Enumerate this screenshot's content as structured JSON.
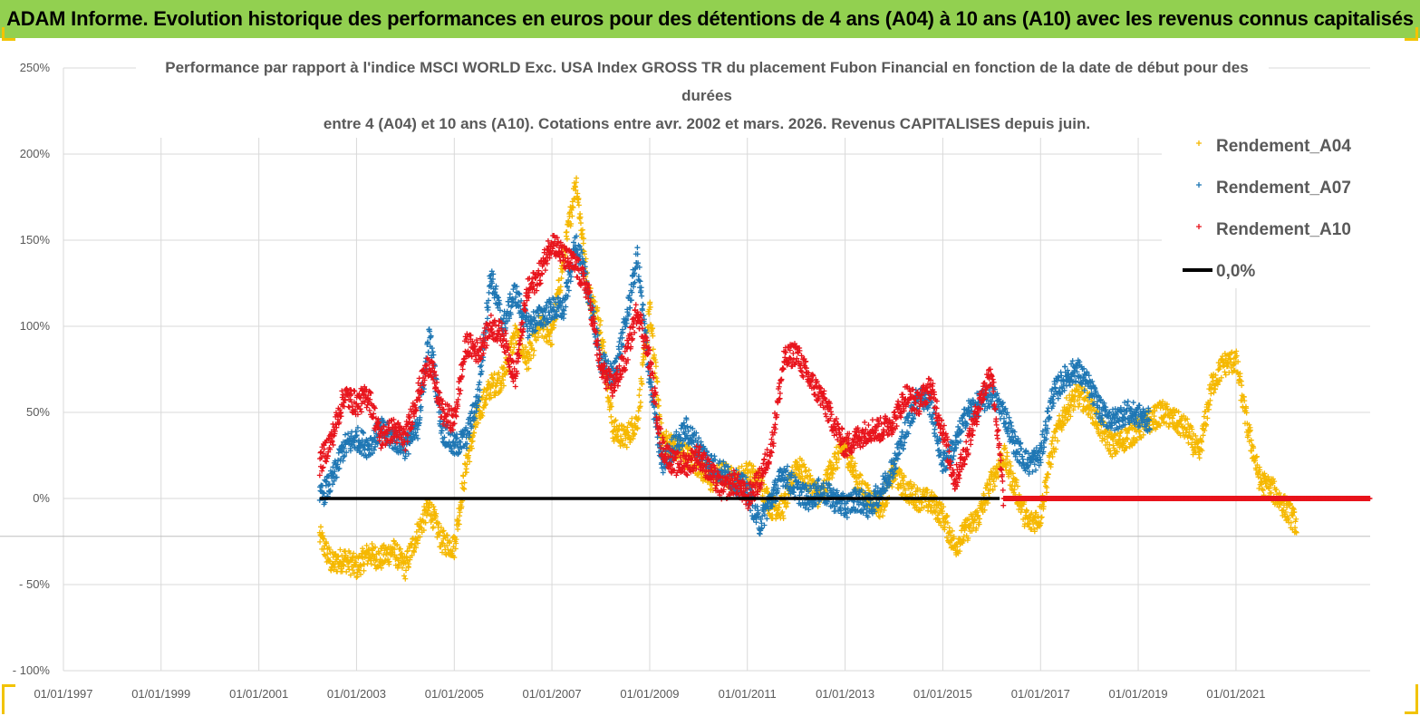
{
  "banner": {
    "title": "ADAM Informe. Evolution historique des performances en euros pour des détentions de 4 ans (A04) à 10 ans (A10) avec les revenus connus capitalisés"
  },
  "colors": {
    "banner_bg": "#92d050",
    "A04": "#f5b800",
    "A07": "#1f77b4",
    "A10": "#e8141c",
    "zero_line": "#000000",
    "grid": "#d9d9d9",
    "text": "#595959"
  },
  "chart_data": {
    "type": "scatter",
    "title_lines": [
      "Performance par rapport à l'indice MSCI WORLD Exc. USA Index GROSS TR  du placement Fubon Financial  en fonction de la date de début pour des",
      "durées",
      "entre 4 (A04) et 10 ans (A10). Cotations entre avr. 2002 et mars. 2026. Revenus CAPITALISES depuis juin."
    ],
    "xlabel": "",
    "ylabel": "",
    "x_range": [
      "1997-01-01",
      "2023-10-01"
    ],
    "x_ticks": [
      "01/01/1997",
      "01/01/1999",
      "01/01/2001",
      "01/01/2003",
      "01/01/2005",
      "01/01/2007",
      "01/01/2009",
      "01/01/2011",
      "01/01/2013",
      "01/01/2015",
      "01/01/2017",
      "01/01/2019",
      "01/01/2021"
    ],
    "ylim": [
      -100,
      250
    ],
    "y_ticks": [
      -100,
      -50,
      0,
      50,
      100,
      150,
      200,
      250
    ],
    "y_tick_labels": [
      "- 100%",
      "- 50%",
      "0%",
      "50%",
      "100%",
      "150%",
      "200%",
      "250%"
    ],
    "grid": true,
    "legend_position": "top-right",
    "series": [
      {
        "name": "Rendement_A04",
        "marker": "+",
        "points": [
          [
            "2002-04-01",
            -22
          ],
          [
            "2002-07-01",
            -38
          ],
          [
            "2002-10-01",
            -35
          ],
          [
            "2003-01-01",
            -40
          ],
          [
            "2003-04-01",
            -32
          ],
          [
            "2003-07-01",
            -35
          ],
          [
            "2003-10-01",
            -30
          ],
          [
            "2004-01-01",
            -40
          ],
          [
            "2004-04-01",
            -20
          ],
          [
            "2004-07-01",
            -5
          ],
          [
            "2004-10-01",
            -25
          ],
          [
            "2005-01-01",
            -28
          ],
          [
            "2005-04-01",
            20
          ],
          [
            "2005-07-01",
            50
          ],
          [
            "2005-10-01",
            65
          ],
          [
            "2006-01-01",
            70
          ],
          [
            "2006-04-01",
            95
          ],
          [
            "2006-07-01",
            80
          ],
          [
            "2006-10-01",
            100
          ],
          [
            "2007-01-01",
            95
          ],
          [
            "2007-04-01",
            140
          ],
          [
            "2007-07-01",
            185
          ],
          [
            "2007-10-01",
            120
          ],
          [
            "2008-01-01",
            100
          ],
          [
            "2008-04-01",
            40
          ],
          [
            "2008-07-01",
            35
          ],
          [
            "2008-10-01",
            45
          ],
          [
            "2009-01-01",
            110
          ],
          [
            "2009-04-01",
            35
          ],
          [
            "2009-07-01",
            30
          ],
          [
            "2009-10-01",
            25
          ],
          [
            "2010-01-01",
            20
          ],
          [
            "2010-04-01",
            10
          ],
          [
            "2010-07-01",
            15
          ],
          [
            "2010-10-01",
            10
          ],
          [
            "2011-01-01",
            15
          ],
          [
            "2011-04-01",
            10
          ],
          [
            "2011-07-01",
            -5
          ],
          [
            "2011-10-01",
            -5
          ],
          [
            "2012-01-01",
            20
          ],
          [
            "2012-04-01",
            10
          ],
          [
            "2012-07-01",
            0
          ],
          [
            "2012-10-01",
            20
          ],
          [
            "2013-01-01",
            30
          ],
          [
            "2013-04-01",
            10
          ],
          [
            "2013-07-01",
            0
          ],
          [
            "2013-10-01",
            -5
          ],
          [
            "2014-01-01",
            15
          ],
          [
            "2014-04-01",
            5
          ],
          [
            "2014-07-01",
            0
          ],
          [
            "2014-10-01",
            -2
          ],
          [
            "2015-01-01",
            -10
          ],
          [
            "2015-04-01",
            -28
          ],
          [
            "2015-07-01",
            -18
          ],
          [
            "2015-10-01",
            -10
          ],
          [
            "2016-01-01",
            10
          ],
          [
            "2016-04-01",
            25
          ],
          [
            "2016-07-01",
            5
          ],
          [
            "2016-10-01",
            -15
          ],
          [
            "2017-01-01",
            -10
          ],
          [
            "2017-04-01",
            30
          ],
          [
            "2017-07-01",
            50
          ],
          [
            "2017-10-01",
            60
          ],
          [
            "2018-01-01",
            55
          ],
          [
            "2018-04-01",
            40
          ],
          [
            "2018-07-01",
            30
          ],
          [
            "2018-10-01",
            35
          ],
          [
            "2019-01-01",
            40
          ],
          [
            "2019-04-01",
            45
          ],
          [
            "2019-07-01",
            50
          ],
          [
            "2019-10-01",
            45
          ],
          [
            "2020-01-01",
            40
          ],
          [
            "2020-04-01",
            25
          ],
          [
            "2020-07-01",
            65
          ],
          [
            "2020-10-01",
            78
          ],
          [
            "2021-01-01",
            80
          ],
          [
            "2021-04-01",
            40
          ],
          [
            "2021-07-01",
            10
          ],
          [
            "2021-10-01",
            5
          ],
          [
            "2022-01-01",
            -5
          ],
          [
            "2022-04-01",
            -15
          ]
        ]
      },
      {
        "name": "Rendement_A07",
        "marker": "+",
        "points": [
          [
            "2002-04-01",
            0
          ],
          [
            "2002-07-01",
            10
          ],
          [
            "2002-10-01",
            30
          ],
          [
            "2003-01-01",
            35
          ],
          [
            "2003-04-01",
            30
          ],
          [
            "2003-07-01",
            40
          ],
          [
            "2003-10-01",
            35
          ],
          [
            "2004-01-01",
            30
          ],
          [
            "2004-04-01",
            40
          ],
          [
            "2004-07-01",
            95
          ],
          [
            "2004-10-01",
            40
          ],
          [
            "2005-01-01",
            30
          ],
          [
            "2005-04-01",
            35
          ],
          [
            "2005-07-01",
            60
          ],
          [
            "2005-10-01",
            130
          ],
          [
            "2006-01-01",
            100
          ],
          [
            "2006-04-01",
            120
          ],
          [
            "2006-07-01",
            100
          ],
          [
            "2006-10-01",
            105
          ],
          [
            "2007-01-01",
            110
          ],
          [
            "2007-04-01",
            110
          ],
          [
            "2007-07-01",
            150
          ],
          [
            "2007-10-01",
            120
          ],
          [
            "2008-01-01",
            80
          ],
          [
            "2008-04-01",
            70
          ],
          [
            "2008-07-01",
            100
          ],
          [
            "2008-10-01",
            140
          ],
          [
            "2009-01-01",
            70
          ],
          [
            "2009-04-01",
            20
          ],
          [
            "2009-07-01",
            30
          ],
          [
            "2009-10-01",
            40
          ],
          [
            "2010-01-01",
            30
          ],
          [
            "2010-04-01",
            20
          ],
          [
            "2010-07-01",
            15
          ],
          [
            "2010-10-01",
            10
          ],
          [
            "2011-01-01",
            5
          ],
          [
            "2011-04-01",
            -15
          ],
          [
            "2011-07-01",
            0
          ],
          [
            "2011-10-01",
            15
          ],
          [
            "2012-01-01",
            5
          ],
          [
            "2012-04-01",
            0
          ],
          [
            "2012-07-01",
            5
          ],
          [
            "2012-10-01",
            0
          ],
          [
            "2013-01-01",
            -5
          ],
          [
            "2013-04-01",
            0
          ],
          [
            "2013-07-01",
            -5
          ],
          [
            "2013-10-01",
            5
          ],
          [
            "2014-01-01",
            20
          ],
          [
            "2014-04-01",
            40
          ],
          [
            "2014-07-01",
            60
          ],
          [
            "2014-10-01",
            55
          ],
          [
            "2015-01-01",
            20
          ],
          [
            "2015-04-01",
            30
          ],
          [
            "2015-07-01",
            50
          ],
          [
            "2015-10-01",
            55
          ],
          [
            "2016-01-01",
            60
          ],
          [
            "2016-04-01",
            50
          ],
          [
            "2016-07-01",
            30
          ],
          [
            "2016-10-01",
            20
          ],
          [
            "2017-01-01",
            25
          ],
          [
            "2017-04-01",
            60
          ],
          [
            "2017-07-01",
            70
          ],
          [
            "2017-10-01",
            75
          ],
          [
            "2018-01-01",
            65
          ],
          [
            "2018-04-01",
            50
          ],
          [
            "2018-07-01",
            45
          ],
          [
            "2018-10-01",
            50
          ],
          [
            "2019-01-01",
            48
          ],
          [
            "2019-04-01",
            45
          ]
        ]
      },
      {
        "name": "Rendement_A10",
        "marker": "+",
        "points": [
          [
            "2002-04-01",
            20
          ],
          [
            "2002-07-01",
            35
          ],
          [
            "2002-10-01",
            60
          ],
          [
            "2003-01-01",
            55
          ],
          [
            "2003-04-01",
            60
          ],
          [
            "2003-07-01",
            35
          ],
          [
            "2003-10-01",
            40
          ],
          [
            "2004-01-01",
            35
          ],
          [
            "2004-04-01",
            60
          ],
          [
            "2004-07-01",
            80
          ],
          [
            "2004-10-01",
            50
          ],
          [
            "2005-01-01",
            45
          ],
          [
            "2005-04-01",
            90
          ],
          [
            "2005-07-01",
            85
          ],
          [
            "2005-10-01",
            100
          ],
          [
            "2006-01-01",
            95
          ],
          [
            "2006-04-01",
            70
          ],
          [
            "2006-07-01",
            120
          ],
          [
            "2006-10-01",
            130
          ],
          [
            "2007-01-01",
            150
          ],
          [
            "2007-04-01",
            140
          ],
          [
            "2007-07-01",
            135
          ],
          [
            "2007-10-01",
            120
          ],
          [
            "2008-01-01",
            75
          ],
          [
            "2008-04-01",
            65
          ],
          [
            "2008-07-01",
            80
          ],
          [
            "2008-10-01",
            110
          ],
          [
            "2009-01-01",
            80
          ],
          [
            "2009-04-01",
            30
          ],
          [
            "2009-07-01",
            20
          ],
          [
            "2009-10-01",
            20
          ],
          [
            "2010-01-01",
            25
          ],
          [
            "2010-04-01",
            15
          ],
          [
            "2010-07-01",
            5
          ],
          [
            "2010-10-01",
            10
          ],
          [
            "2011-01-01",
            0
          ],
          [
            "2011-04-01",
            10
          ],
          [
            "2011-07-01",
            30
          ],
          [
            "2011-10-01",
            80
          ],
          [
            "2012-01-01",
            85
          ],
          [
            "2012-04-01",
            70
          ],
          [
            "2012-07-01",
            60
          ],
          [
            "2012-10-01",
            45
          ],
          [
            "2013-01-01",
            30
          ],
          [
            "2013-04-01",
            35
          ],
          [
            "2013-07-01",
            40
          ],
          [
            "2013-10-01",
            40
          ],
          [
            "2014-01-01",
            45
          ],
          [
            "2014-04-01",
            60
          ],
          [
            "2014-07-01",
            55
          ],
          [
            "2014-10-01",
            65
          ],
          [
            "2015-01-01",
            40
          ],
          [
            "2015-04-01",
            10
          ],
          [
            "2015-07-01",
            30
          ],
          [
            "2015-10-01",
            55
          ],
          [
            "2016-01-01",
            75
          ],
          [
            "2016-04-01",
            0
          ],
          [
            "2016-07-01",
            0
          ],
          [
            "2016-10-01",
            0
          ],
          [
            "2017-01-01",
            0
          ],
          [
            "2017-04-01",
            0
          ],
          [
            "2017-07-01",
            0
          ],
          [
            "2017-10-01",
            0
          ],
          [
            "2018-01-01",
            0
          ],
          [
            "2018-04-01",
            0
          ],
          [
            "2018-07-01",
            0
          ],
          [
            "2018-10-01",
            0
          ],
          [
            "2019-01-01",
            0
          ],
          [
            "2019-04-01",
            0
          ],
          [
            "2019-07-01",
            0
          ],
          [
            "2019-10-01",
            0
          ],
          [
            "2020-01-01",
            0
          ],
          [
            "2020-04-01",
            0
          ],
          [
            "2020-07-01",
            0
          ],
          [
            "2020-10-01",
            0
          ],
          [
            "2021-01-01",
            0
          ],
          [
            "2021-04-01",
            0
          ],
          [
            "2021-07-01",
            0
          ],
          [
            "2021-10-01",
            0
          ],
          [
            "2022-01-01",
            0
          ],
          [
            "2022-04-01",
            0
          ],
          [
            "2022-07-01",
            0
          ],
          [
            "2022-10-01",
            0
          ],
          [
            "2023-01-01",
            0
          ],
          [
            "2023-04-01",
            0
          ],
          [
            "2023-07-01",
            0
          ],
          [
            "2023-10-01",
            0
          ]
        ]
      },
      {
        "name": "0,0%",
        "type": "line",
        "points": [
          [
            "2002-04-01",
            0
          ],
          [
            "2016-03-01",
            0
          ]
        ]
      }
    ],
    "legend": [
      {
        "label": "Rendement_A04",
        "marker": "+",
        "color": "#f5b800"
      },
      {
        "label": "Rendement_A07",
        "marker": "+",
        "color": "#1f77b4"
      },
      {
        "label": "Rendement_A10",
        "marker": "+",
        "color": "#e8141c"
      },
      {
        "label": "0,0%",
        "marker": "line",
        "color": "#000000"
      }
    ]
  }
}
